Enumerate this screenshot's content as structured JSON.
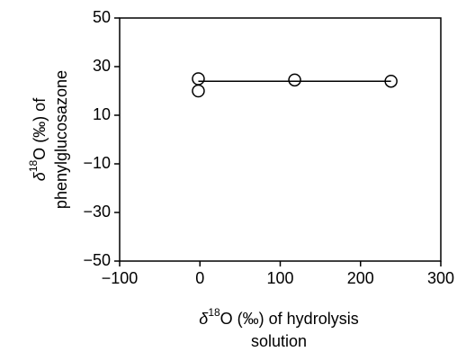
{
  "chart_data": {
    "type": "scatter",
    "x_label": {
      "symbol": "δ",
      "sup": "18",
      "line1": "O (‰) of hydrolysis",
      "line2": "solution"
    },
    "y_label": {
      "symbol": "δ",
      "sup": "18",
      "line1": "O (‰) of",
      "line2": "phenylglucosazone"
    },
    "xlim": [
      -100,
      300
    ],
    "xticks": [
      {
        "value": -100,
        "label": "−100"
      },
      0,
      100,
      200,
      300
    ],
    "ylim": [
      -50,
      50
    ],
    "yticks": [
      {
        "value": -50,
        "label": "−50"
      },
      {
        "value": -30,
        "label": "−30"
      },
      {
        "value": -10,
        "label": "−10"
      },
      10,
      30,
      50
    ],
    "series": [
      {
        "color": "#000000",
        "marker": "open-circle",
        "x": [
          -2,
          -2,
          118,
          238
        ],
        "values": [
          25,
          20,
          24.5,
          24
        ]
      }
    ],
    "fit_line": {
      "color": "#000000",
      "x": [
        -2,
        238
      ],
      "values": [
        24,
        24
      ]
    }
  }
}
